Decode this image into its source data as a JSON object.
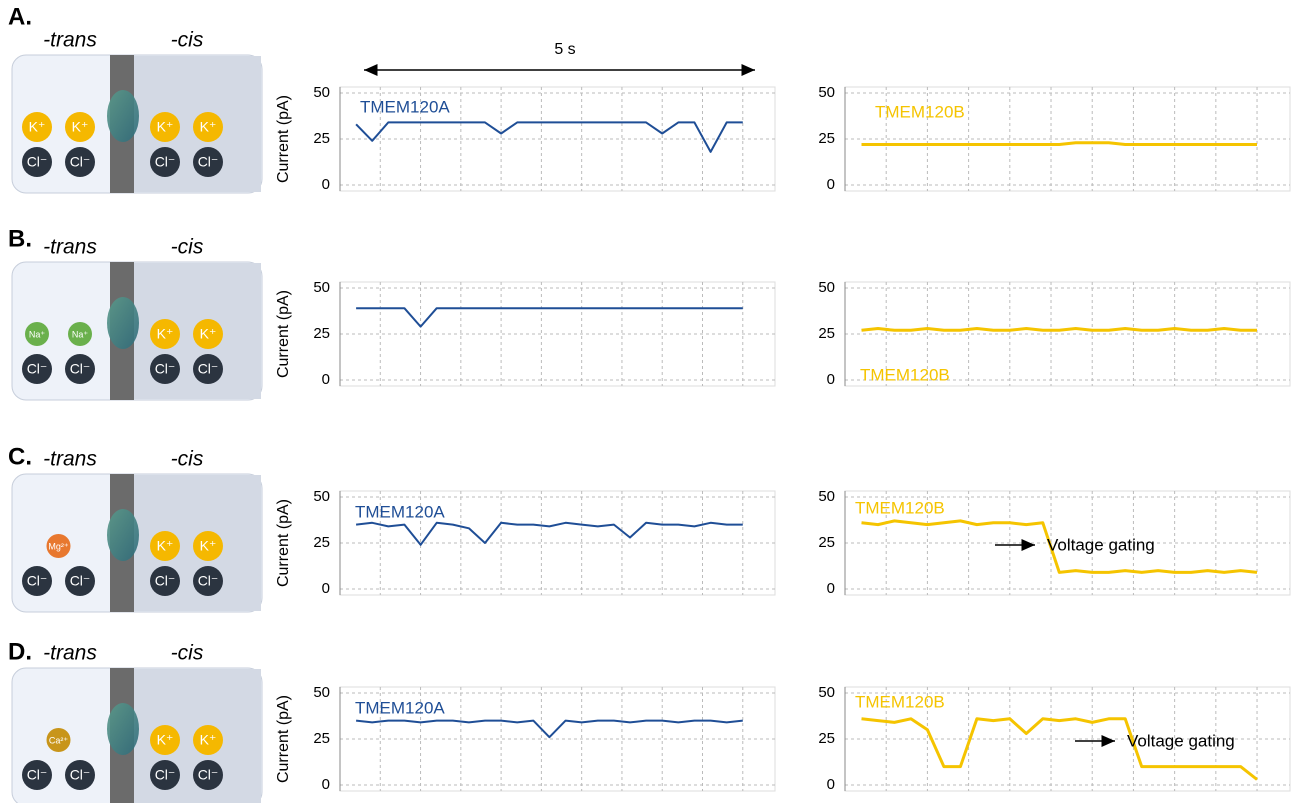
{
  "scale_bar": "5 s",
  "diagrams": [
    {
      "label": "A.",
      "trans": "-trans",
      "cis": "-cis",
      "trans_ions": [
        {
          "label": "K⁺",
          "color": "#f5b800"
        },
        {
          "label": "K⁺",
          "color": "#f5b800"
        },
        {
          "label": "Cl⁻",
          "color": "#2b3440"
        },
        {
          "label": "Cl⁻",
          "color": "#2b3440"
        }
      ],
      "cis_ions": [
        {
          "label": "K⁺",
          "color": "#f5b800"
        },
        {
          "label": "K⁺",
          "color": "#f5b800"
        },
        {
          "label": "Cl⁻",
          "color": "#2b3440"
        },
        {
          "label": "Cl⁻",
          "color": "#2b3440"
        }
      ]
    },
    {
      "label": "B.",
      "trans": "-trans",
      "cis": "-cis",
      "trans_ions": [
        {
          "label": "Na⁺",
          "color": "#6ab04c"
        },
        {
          "label": "Na⁺",
          "color": "#6ab04c"
        },
        {
          "label": "Cl⁻",
          "color": "#2b3440"
        },
        {
          "label": "Cl⁻",
          "color": "#2b3440"
        }
      ],
      "cis_ions": [
        {
          "label": "K⁺",
          "color": "#f5b800"
        },
        {
          "label": "K⁺",
          "color": "#f5b800"
        },
        {
          "label": "Cl⁻",
          "color": "#2b3440"
        },
        {
          "label": "Cl⁻",
          "color": "#2b3440"
        }
      ]
    },
    {
      "label": "C.",
      "trans": "-trans",
      "cis": "-cis",
      "trans_ions": [
        {
          "label": "Mg²⁺",
          "color": "#e8782f"
        },
        {
          "label": "Cl⁻",
          "color": "#2b3440"
        },
        {
          "label": "Cl⁻",
          "color": "#2b3440"
        }
      ],
      "cis_ions": [
        {
          "label": "K⁺",
          "color": "#f5b800"
        },
        {
          "label": "K⁺",
          "color": "#f5b800"
        },
        {
          "label": "Cl⁻",
          "color": "#2b3440"
        },
        {
          "label": "Cl⁻",
          "color": "#2b3440"
        }
      ]
    },
    {
      "label": "D.",
      "trans": "-trans",
      "cis": "-cis",
      "trans_ions": [
        {
          "label": "Ca²⁺",
          "color": "#c8951a"
        },
        {
          "label": "Cl⁻",
          "color": "#2b3440"
        },
        {
          "label": "Cl⁻",
          "color": "#2b3440"
        }
      ],
      "cis_ions": [
        {
          "label": "K⁺",
          "color": "#f5b800"
        },
        {
          "label": "K⁺",
          "color": "#f5b800"
        },
        {
          "label": "Cl⁻",
          "color": "#2b3440"
        },
        {
          "label": "Cl⁻",
          "color": "#2b3440"
        }
      ]
    }
  ],
  "chart_data": [
    {
      "type": "line",
      "ylabel": "Current (pA)",
      "xlim": [
        0,
        5.4
      ],
      "xticks": [
        0,
        0.5,
        1,
        1.5,
        2,
        2.5,
        3,
        3.5,
        4,
        4.5,
        5
      ],
      "ylim": [
        0,
        50
      ],
      "yticks": [
        0,
        25,
        50
      ],
      "grid": true,
      "x": [
        0.2,
        0.4,
        0.6,
        0.8,
        1,
        1.2,
        1.4,
        1.6,
        1.8,
        2,
        2.2,
        2.4,
        2.6,
        2.8,
        3,
        3.2,
        3.4,
        3.6,
        3.8,
        4,
        4.2,
        4.4,
        4.6,
        4.8,
        5
      ],
      "series": [
        {
          "name": "TMEM120A",
          "color": "#1f4e96",
          "values": [
            33,
            24,
            34,
            34,
            34,
            34,
            34,
            34,
            34,
            28,
            34,
            34,
            34,
            34,
            34,
            34,
            34,
            34,
            34,
            28,
            34,
            34,
            18,
            34,
            34
          ]
        }
      ]
    },
    {
      "type": "line",
      "xlim": [
        0,
        5.4
      ],
      "xticks": [
        0,
        0.5,
        1,
        1.5,
        2,
        2.5,
        3,
        3.5,
        4,
        4.5,
        5
      ],
      "ylim": [
        0,
        50
      ],
      "yticks": [
        0,
        25,
        50
      ],
      "grid": true,
      "x": [
        0.2,
        0.4,
        0.6,
        0.8,
        1,
        1.2,
        1.4,
        1.6,
        1.8,
        2,
        2.2,
        2.4,
        2.6,
        2.8,
        3,
        3.2,
        3.4,
        3.6,
        3.8,
        4,
        4.2,
        4.4,
        4.6,
        4.8,
        5
      ],
      "series": [
        {
          "name": "TMEM120B",
          "color": "#f5c400",
          "values": [
            22,
            22,
            22,
            22,
            22,
            22,
            22,
            22,
            22,
            22,
            22,
            22,
            22,
            23,
            23,
            23,
            22,
            22,
            22,
            22,
            22,
            22,
            22,
            22,
            22
          ]
        }
      ]
    },
    {
      "type": "line",
      "ylabel": "Current (pA)",
      "xlim": [
        0,
        5.4
      ],
      "xticks": [
        0,
        0.5,
        1,
        1.5,
        2,
        2.5,
        3,
        3.5,
        4,
        4.5,
        5
      ],
      "ylim": [
        0,
        50
      ],
      "yticks": [
        0,
        25,
        50
      ],
      "grid": true,
      "x": [
        0.2,
        0.4,
        0.6,
        0.8,
        1,
        1.2,
        1.4,
        1.6,
        1.8,
        2,
        2.2,
        2.4,
        2.6,
        2.8,
        3,
        3.2,
        3.4,
        3.6,
        3.8,
        4,
        4.2,
        4.4,
        4.6,
        4.8,
        5
      ],
      "series": [
        {
          "color": "#1f4e96",
          "values": [
            39,
            39,
            39,
            39,
            29,
            39,
            39,
            39,
            39,
            39,
            39,
            39,
            39,
            39,
            39,
            39,
            39,
            39,
            39,
            39,
            39,
            39,
            39,
            39,
            39
          ]
        }
      ]
    },
    {
      "type": "line",
      "xlim": [
        0,
        5.4
      ],
      "xticks": [
        0,
        0.5,
        1,
        1.5,
        2,
        2.5,
        3,
        3.5,
        4,
        4.5,
        5
      ],
      "ylim": [
        0,
        50
      ],
      "yticks": [
        0,
        25,
        50
      ],
      "grid": true,
      "x": [
        0.2,
        0.4,
        0.6,
        0.8,
        1,
        1.2,
        1.4,
        1.6,
        1.8,
        2,
        2.2,
        2.4,
        2.6,
        2.8,
        3,
        3.2,
        3.4,
        3.6,
        3.8,
        4,
        4.2,
        4.4,
        4.6,
        4.8,
        5
      ],
      "series": [
        {
          "name": "TMEM120B",
          "color": "#f5c400",
          "values": [
            27,
            28,
            27,
            27,
            28,
            27,
            27,
            28,
            27,
            27,
            28,
            27,
            27,
            28,
            27,
            27,
            28,
            27,
            27,
            28,
            27,
            27,
            28,
            27,
            27
          ]
        }
      ]
    },
    {
      "type": "line",
      "ylabel": "Current (pA)",
      "xlim": [
        0,
        5.4
      ],
      "xticks": [
        0,
        0.5,
        1,
        1.5,
        2,
        2.5,
        3,
        3.5,
        4,
        4.5,
        5
      ],
      "ylim": [
        0,
        50
      ],
      "yticks": [
        0,
        25,
        50
      ],
      "grid": true,
      "x": [
        0.2,
        0.4,
        0.6,
        0.8,
        1,
        1.2,
        1.4,
        1.6,
        1.8,
        2,
        2.2,
        2.4,
        2.6,
        2.8,
        3,
        3.2,
        3.4,
        3.6,
        3.8,
        4,
        4.2,
        4.4,
        4.6,
        4.8,
        5
      ],
      "series": [
        {
          "name": "TMEM120A",
          "color": "#1f4e96",
          "values": [
            35,
            36,
            34,
            35,
            24,
            36,
            35,
            33,
            25,
            36,
            35,
            35,
            34,
            36,
            35,
            34,
            35,
            28,
            36,
            35,
            35,
            34,
            36,
            35,
            35
          ]
        }
      ]
    },
    {
      "type": "line",
      "xlim": [
        0,
        5.4
      ],
      "xticks": [
        0,
        0.5,
        1,
        1.5,
        2,
        2.5,
        3,
        3.5,
        4,
        4.5,
        5
      ],
      "ylim": [
        0,
        50
      ],
      "yticks": [
        0,
        25,
        50
      ],
      "grid": true,
      "x": [
        0.2,
        0.4,
        0.6,
        0.8,
        1,
        1.2,
        1.4,
        1.6,
        1.8,
        2,
        2.2,
        2.4,
        2.6,
        2.8,
        3,
        3.2,
        3.4,
        3.6,
        3.8,
        4,
        4.2,
        4.4,
        4.6,
        4.8,
        5
      ],
      "series": [
        {
          "name": "TMEM120B",
          "color": "#f5c400",
          "values": [
            36,
            35,
            37,
            36,
            35,
            36,
            37,
            35,
            36,
            36,
            35,
            36,
            9,
            10,
            9,
            9,
            10,
            9,
            10,
            9,
            9,
            10,
            9,
            10,
            9
          ]
        }
      ],
      "annotations": [
        {
          "text": "Voltage gating"
        }
      ]
    },
    {
      "type": "line",
      "ylabel": "Current (pA)",
      "xlim": [
        0,
        5.4
      ],
      "xticks": [
        0,
        0.5,
        1,
        1.5,
        2,
        2.5,
        3,
        3.5,
        4,
        4.5,
        5
      ],
      "ylim": [
        0,
        50
      ],
      "yticks": [
        0,
        25,
        50
      ],
      "grid": true,
      "x": [
        0.2,
        0.4,
        0.6,
        0.8,
        1,
        1.2,
        1.4,
        1.6,
        1.8,
        2,
        2.2,
        2.4,
        2.6,
        2.8,
        3,
        3.2,
        3.4,
        3.6,
        3.8,
        4,
        4.2,
        4.4,
        4.6,
        4.8,
        5
      ],
      "series": [
        {
          "name": "TMEM120A",
          "color": "#1f4e96",
          "values": [
            35,
            34,
            35,
            35,
            34,
            35,
            35,
            34,
            35,
            35,
            34,
            35,
            26,
            35,
            34,
            35,
            35,
            34,
            35,
            35,
            34,
            35,
            35,
            34,
            35
          ]
        }
      ]
    },
    {
      "type": "line",
      "xlim": [
        0,
        5.4
      ],
      "xticks": [
        0,
        0.5,
        1,
        1.5,
        2,
        2.5,
        3,
        3.5,
        4,
        4.5,
        5
      ],
      "ylim": [
        0,
        50
      ],
      "yticks": [
        0,
        25,
        50
      ],
      "grid": true,
      "x": [
        0.2,
        0.4,
        0.6,
        0.8,
        1,
        1.2,
        1.4,
        1.6,
        1.8,
        2,
        2.2,
        2.4,
        2.6,
        2.8,
        3,
        3.2,
        3.4,
        3.6,
        3.8,
        4,
        4.2,
        4.4,
        4.6,
        4.8,
        5
      ],
      "series": [
        {
          "name": "TMEM120B",
          "color": "#f5c400",
          "values": [
            36,
            35,
            34,
            36,
            30,
            10,
            10,
            36,
            35,
            36,
            28,
            36,
            35,
            36,
            34,
            36,
            36,
            10,
            10,
            10,
            10,
            10,
            10,
            10,
            3
          ]
        }
      ],
      "annotations": [
        {
          "text": "Voltage gating"
        }
      ]
    }
  ]
}
